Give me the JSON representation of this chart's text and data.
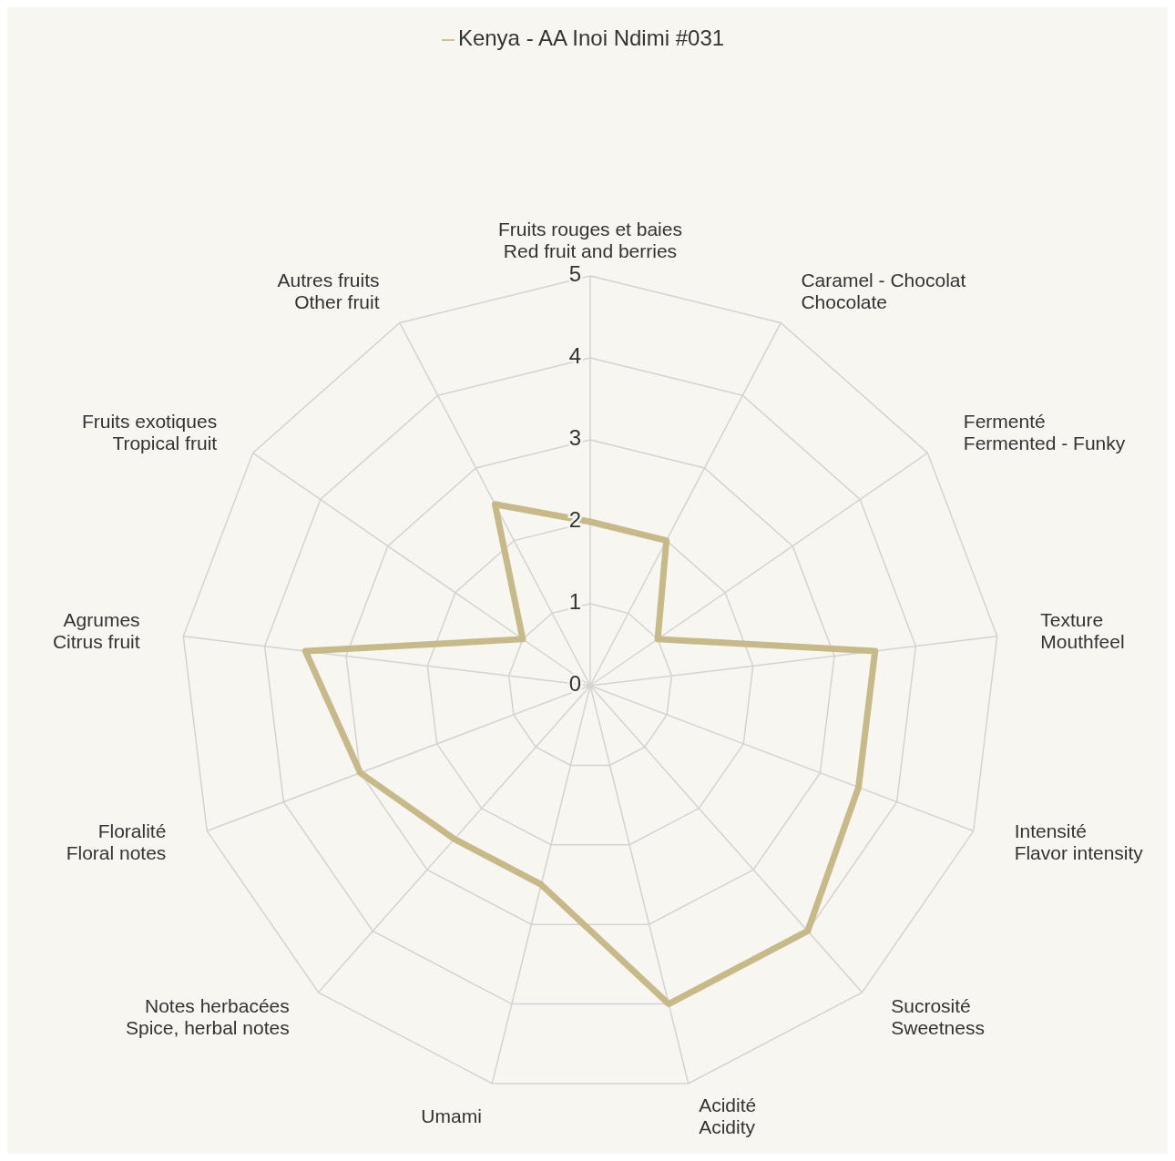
{
  "chart_data": {
    "type": "radar",
    "categories": [
      "Fruits rouges et baies\nRed fruit and berries",
      "Caramel - Chocolat\nChocolate",
      "Fermenté\nFermented - Funky",
      "Texture\nMouthfeel",
      "Intensité\nFlavor intensity",
      "Sucrosité\nSweetness",
      "Acidité\nAcidity",
      "Umami",
      "Notes herbacées\nSpice, herbal notes",
      "Floralité\nFloral notes",
      "Agrumes\nCitrus fruit",
      "Fruits exotiques\nTropical fruit",
      "Autres fruits\nOther fruit"
    ],
    "series": [
      {
        "name": "Kenya - AA Inoi Ndimi #031",
        "color": "#c8b98a",
        "values": [
          2,
          2,
          1,
          3.5,
          3.5,
          4,
          4,
          2.5,
          2.5,
          3,
          3.5,
          1,
          2.5
        ]
      }
    ],
    "ylim": [
      0,
      5
    ],
    "yticks": [
      0,
      1,
      2,
      3,
      4,
      5
    ],
    "grid": true,
    "legend": "top",
    "marker": "none",
    "line_style": "solid"
  }
}
